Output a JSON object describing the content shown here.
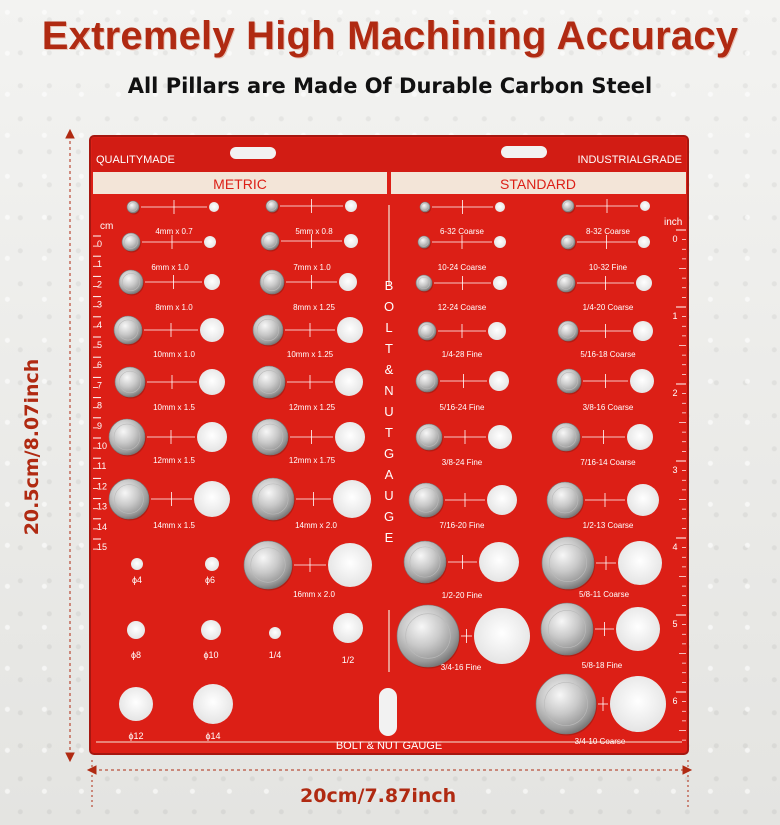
{
  "header": {
    "title": "Extremely High Machining Accuracy",
    "subtitle": "All Pillars are Made Of Durable Carbon Steel"
  },
  "board": {
    "color": "#dc1f16",
    "top_left_label": "QUALITYMADE",
    "top_right_label": "INDUSTRIALGRADE",
    "metric_header": "METRIC",
    "standard_header": "STANDARD",
    "bottom_label": "BOLT & NUT GAUGE",
    "vertical_label": "BOLT & NUT GAUGE",
    "left_ruler": {
      "unit": "cm",
      "ticks": [
        "0",
        "1",
        "2",
        "3",
        "4",
        "5",
        "6",
        "7",
        "8",
        "9",
        "10",
        "11",
        "12",
        "13",
        "14",
        "15"
      ]
    },
    "right_ruler": {
      "unit": "inch",
      "ticks": [
        "0",
        "1",
        "2",
        "3",
        "4",
        "5",
        "6"
      ]
    },
    "metric_sizes": [
      "4mm x 0.7",
      "5mm x 0.8",
      "6mm x 1.0",
      "7mm x 1.0",
      "8mm x 1.0",
      "8mm x 1.25",
      "10mm x 1.0",
      "10mm x 1.25",
      "10mm x 1.5",
      "12mm x 1.25",
      "12mm x 1.5",
      "12mm x 1.75",
      "14mm x 1.5",
      "14mm x 2.0",
      "16mm x 2.0"
    ],
    "standard_sizes": [
      "6-32 Coarse",
      "8-32 Coarse",
      "10-24 Coarse",
      "10-32 Fine",
      "12-24 Coarse",
      "1/4-20 Coarse",
      "1/4-28 Fine",
      "5/16-18 Coarse",
      "5/16-24 Fine",
      "3/8-16 Coarse",
      "3/8-24 Fine",
      "7/16-14 Coarse",
      "7/16-20 Fine",
      "1/2-13 Coarse",
      "1/2-20 Fine",
      "5/8-11 Coarse",
      "3/4-16 Fine",
      "5/8-18 Fine",
      "3/4-10 Coarse"
    ],
    "hole_sizes": [
      "ϕ4",
      "ϕ6",
      "ϕ8",
      "ϕ10",
      "1/4",
      "1/2",
      "ϕ12",
      "ϕ14"
    ]
  },
  "dimensions": {
    "width": "20cm/7.87inch",
    "height": "20.5cm/8.07inch"
  }
}
